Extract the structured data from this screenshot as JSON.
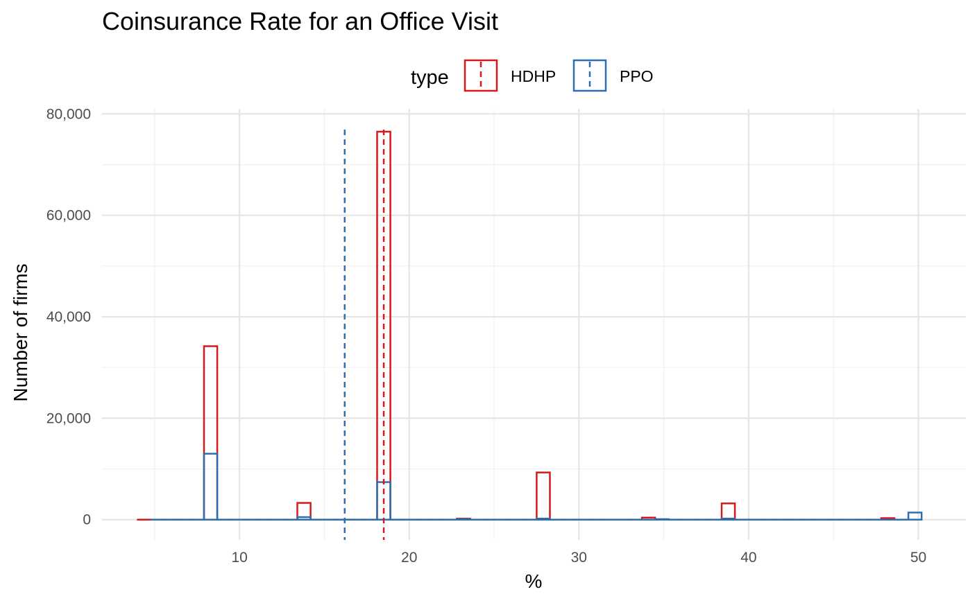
{
  "chart_data": {
    "type": "histogram",
    "title": "Coinsurance Rate for an Office Visit",
    "xlabel": "%",
    "ylabel": "Number of firms",
    "xlim": [
      1.9,
      52.8
    ],
    "ylim": [
      -4000,
      81000
    ],
    "x_ticks": [
      10,
      20,
      30,
      40,
      50
    ],
    "x_minor_ticks": [
      5,
      15,
      25,
      35,
      45
    ],
    "y_ticks": [
      0,
      20000,
      40000,
      60000,
      80000
    ],
    "y_tick_labels": [
      "0",
      "20,000",
      "40,000",
      "60,000",
      "80,000"
    ],
    "y_minor_ticks": [
      10000,
      30000,
      50000,
      70000
    ],
    "bin_width": 0.78,
    "grid": true,
    "legend": {
      "title": "type",
      "position": "top",
      "entries": [
        {
          "label": "HDHP",
          "color": "#d7191c"
        },
        {
          "label": "PPO",
          "color": "#2c6fb0"
        }
      ]
    },
    "series": [
      {
        "name": "HDHP",
        "color": "#d7191c",
        "mean": 18.5,
        "x": [
          4.4,
          5.2,
          6.0,
          6.7,
          7.5,
          8.3,
          9.1,
          9.9,
          10.7,
          11.5,
          12.2,
          13.0,
          13.8,
          14.6,
          15.4,
          16.2,
          16.9,
          17.7,
          18.5,
          19.3,
          20.1,
          20.9,
          21.6,
          22.4,
          23.2,
          24.0,
          24.8,
          25.5,
          26.3,
          27.1,
          27.9,
          28.7,
          29.5,
          30.2,
          31.0,
          31.8,
          32.6,
          33.4,
          34.1,
          34.9,
          35.7,
          36.5,
          37.3,
          38.1,
          38.8,
          39.6,
          40.4,
          41.2,
          42.0,
          42.7,
          43.5,
          44.3,
          45.1,
          45.9,
          46.7,
          47.4,
          48.2,
          49.0
        ],
        "y": [
          0,
          0,
          0,
          0,
          0,
          34200,
          0,
          0,
          0,
          0,
          0,
          0,
          3300,
          0,
          0,
          0,
          0,
          0,
          76500,
          0,
          0,
          0,
          0,
          0,
          200,
          0,
          0,
          0,
          0,
          0,
          9300,
          0,
          0,
          0,
          0,
          0,
          0,
          0,
          400,
          0,
          0,
          0,
          0,
          0,
          3200,
          0,
          0,
          0,
          0,
          0,
          0,
          0,
          0,
          0,
          0,
          0,
          300,
          0
        ]
      },
      {
        "name": "PPO",
        "color": "#2c6fb0",
        "mean": 16.2,
        "x": [
          5.2,
          6.0,
          6.7,
          7.5,
          8.3,
          9.1,
          9.9,
          10.7,
          11.5,
          12.2,
          13.0,
          13.8,
          14.6,
          15.4,
          16.2,
          16.9,
          17.7,
          18.5,
          19.3,
          20.1,
          20.9,
          21.6,
          22.4,
          23.2,
          24.0,
          24.8,
          25.5,
          26.3,
          27.1,
          27.9,
          28.7,
          29.5,
          30.2,
          31.0,
          31.8,
          32.6,
          33.4,
          34.1,
          34.9,
          35.7,
          36.5,
          37.3,
          38.1,
          38.8,
          39.6,
          40.4,
          41.2,
          42.0,
          42.7,
          43.5,
          44.3,
          45.1,
          45.9,
          46.7,
          47.4,
          48.2,
          49.0,
          49.8
        ],
        "y": [
          0,
          0,
          0,
          0,
          13000,
          0,
          0,
          0,
          0,
          0,
          0,
          500,
          0,
          0,
          0,
          0,
          0,
          7400,
          0,
          0,
          0,
          0,
          0,
          100,
          0,
          0,
          0,
          0,
          0,
          200,
          0,
          0,
          0,
          0,
          0,
          0,
          0,
          0,
          100,
          0,
          0,
          0,
          0,
          200,
          0,
          0,
          0,
          0,
          0,
          0,
          0,
          0,
          0,
          0,
          0,
          0,
          0,
          1400
        ]
      }
    ]
  }
}
